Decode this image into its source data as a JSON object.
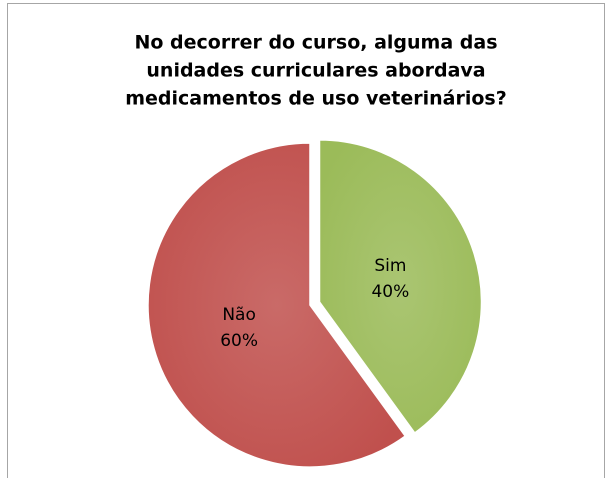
{
  "chart_data": {
    "type": "pie",
    "title": [
      "No decorrer do curso, alguma das",
      "unidades curriculares abordava",
      "medicamentos de uso veterinários?"
    ],
    "categories": [
      "Sim",
      "Não"
    ],
    "values": [
      40,
      60
    ],
    "value_labels": [
      "40%",
      "60%"
    ],
    "colors": [
      "#9bbb59",
      "#c0504d"
    ]
  }
}
